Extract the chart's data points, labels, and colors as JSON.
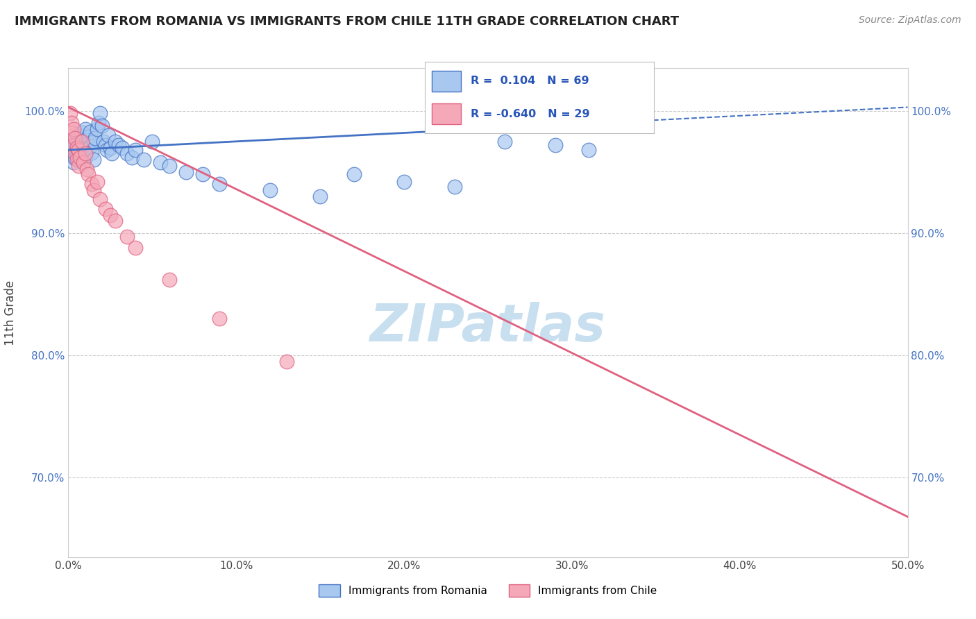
{
  "title": "IMMIGRANTS FROM ROMANIA VS IMMIGRANTS FROM CHILE 11TH GRADE CORRELATION CHART",
  "source": "Source: ZipAtlas.com",
  "xlabel_romania": "Immigrants from Romania",
  "xlabel_chile": "Immigrants from Chile",
  "ylabel": "11th Grade",
  "xlim": [
    0.0,
    0.5
  ],
  "ylim": [
    0.635,
    1.035
  ],
  "xticks": [
    0.0,
    0.1,
    0.2,
    0.3,
    0.4,
    0.5
  ],
  "xtick_labels": [
    "0.0%",
    "10.0%",
    "20.0%",
    "30.0%",
    "40.0%",
    "50.0%"
  ],
  "yticks": [
    0.7,
    0.8,
    0.9,
    1.0
  ],
  "ytick_labels": [
    "70.0%",
    "80.0%",
    "90.0%",
    "100.0%"
  ],
  "R_romania": 0.104,
  "N_romania": 69,
  "R_chile": -0.64,
  "N_chile": 29,
  "color_romania": "#a8c8f0",
  "color_chile": "#f4a8b8",
  "color_romania_line": "#4472c4",
  "color_chile_line": "#e06080",
  "watermark": "ZIPatlas",
  "watermark_color": "#c8dff0",
  "legend_r_color": "#2855b8",
  "grid_color": "#cccccc",
  "romania_line_x0": 0.0,
  "romania_line_y0": 0.968,
  "romania_line_x1": 0.5,
  "romania_line_y1": 1.003,
  "romania_line_solid_end": 0.28,
  "chile_line_x0": 0.0,
  "chile_line_y0": 1.003,
  "chile_line_x1": 0.5,
  "chile_line_y1": 0.668,
  "romania_scatter_x": [
    0.001,
    0.001,
    0.002,
    0.002,
    0.002,
    0.003,
    0.003,
    0.003,
    0.003,
    0.004,
    0.004,
    0.004,
    0.005,
    0.005,
    0.005,
    0.006,
    0.006,
    0.006,
    0.007,
    0.007,
    0.007,
    0.008,
    0.008,
    0.008,
    0.009,
    0.009,
    0.01,
    0.01,
    0.01,
    0.011,
    0.011,
    0.012,
    0.013,
    0.013,
    0.014,
    0.015,
    0.015,
    0.016,
    0.017,
    0.018,
    0.019,
    0.02,
    0.021,
    0.022,
    0.023,
    0.024,
    0.025,
    0.026,
    0.028,
    0.03,
    0.032,
    0.035,
    0.038,
    0.04,
    0.045,
    0.05,
    0.055,
    0.06,
    0.07,
    0.08,
    0.09,
    0.12,
    0.15,
    0.17,
    0.2,
    0.23,
    0.26,
    0.29,
    0.31
  ],
  "romania_scatter_y": [
    0.971,
    0.968,
    0.972,
    0.965,
    0.975,
    0.969,
    0.963,
    0.97,
    0.958,
    0.974,
    0.966,
    0.961,
    0.978,
    0.964,
    0.972,
    0.98,
    0.967,
    0.96,
    0.975,
    0.963,
    0.97,
    0.982,
    0.968,
    0.961,
    0.972,
    0.965,
    0.985,
    0.97,
    0.962,
    0.976,
    0.968,
    0.979,
    0.983,
    0.971,
    0.966,
    0.975,
    0.96,
    0.978,
    0.985,
    0.99,
    0.998,
    0.988,
    0.975,
    0.972,
    0.968,
    0.98,
    0.97,
    0.965,
    0.975,
    0.972,
    0.97,
    0.965,
    0.962,
    0.968,
    0.96,
    0.975,
    0.958,
    0.955,
    0.95,
    0.948,
    0.94,
    0.935,
    0.93,
    0.948,
    0.942,
    0.938,
    0.975,
    0.972,
    0.968
  ],
  "chile_scatter_x": [
    0.001,
    0.002,
    0.002,
    0.003,
    0.003,
    0.004,
    0.004,
    0.005,
    0.005,
    0.006,
    0.006,
    0.007,
    0.008,
    0.009,
    0.01,
    0.011,
    0.012,
    0.014,
    0.015,
    0.017,
    0.019,
    0.022,
    0.025,
    0.028,
    0.035,
    0.04,
    0.06,
    0.09,
    0.13
  ],
  "chile_scatter_y": [
    0.998,
    0.99,
    0.982,
    0.985,
    0.972,
    0.978,
    0.965,
    0.97,
    0.96,
    0.968,
    0.955,
    0.962,
    0.975,
    0.958,
    0.965,
    0.952,
    0.948,
    0.94,
    0.935,
    0.942,
    0.928,
    0.92,
    0.915,
    0.91,
    0.897,
    0.888,
    0.862,
    0.83,
    0.795
  ]
}
